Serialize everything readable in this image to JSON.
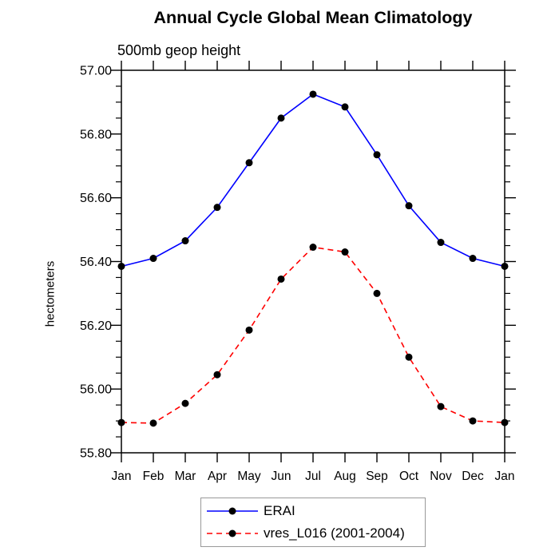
{
  "chart_data": {
    "type": "line",
    "title": "Annual Cycle Global Mean Climatology",
    "subtitle": "500mb geop height",
    "ylabel": "hectometers",
    "xlabel": "",
    "categories": [
      "Jan",
      "Feb",
      "Mar",
      "Apr",
      "May",
      "Jun",
      "Jul",
      "Aug",
      "Sep",
      "Oct",
      "Nov",
      "Dec",
      "Jan"
    ],
    "series": [
      {
        "name": "ERAI",
        "line_color": "#0000ff",
        "line_style": "solid",
        "marker": "filled-circle",
        "marker_color": "#000000",
        "values": [
          56.385,
          56.41,
          56.465,
          56.57,
          56.71,
          56.85,
          56.925,
          56.885,
          56.735,
          56.575,
          56.46,
          56.41,
          56.385
        ]
      },
      {
        "name": "vres_L016 (2001-2004)",
        "line_color": "#ff0000",
        "line_style": "dashed",
        "marker": "filled-circle",
        "marker_color": "#000000",
        "values": [
          55.895,
          55.893,
          55.955,
          56.045,
          56.185,
          56.345,
          56.445,
          56.43,
          56.3,
          56.1,
          55.945,
          55.9,
          55.895
        ]
      }
    ],
    "ylim": [
      55.8,
      57.0
    ],
    "y_ticks": {
      "values": [
        55.8,
        56.0,
        56.2,
        56.4,
        56.6,
        56.8,
        57.0
      ],
      "labels": [
        "55.80",
        "56.00",
        "56.20",
        "56.40",
        "56.60",
        "56.80",
        "57.00"
      ]
    },
    "y_minor_tick_step": 0.05,
    "grid": false,
    "legend_position": "bottom-center",
    "axis_color": "#000000",
    "legend_border_color": "#999999"
  }
}
